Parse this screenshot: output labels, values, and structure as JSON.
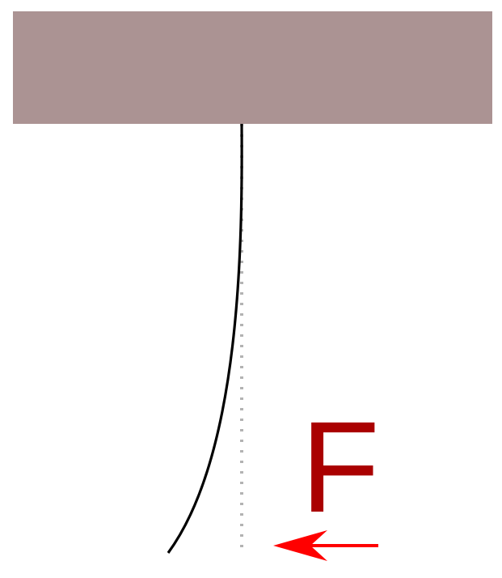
{
  "diagram": {
    "force_label": "F",
    "colors": {
      "support": "#ab9393",
      "beam": "#000000",
      "reference_line": "#b3b3b3",
      "force_label": "#aa0000",
      "force_arrow": "#ff0000"
    }
  }
}
